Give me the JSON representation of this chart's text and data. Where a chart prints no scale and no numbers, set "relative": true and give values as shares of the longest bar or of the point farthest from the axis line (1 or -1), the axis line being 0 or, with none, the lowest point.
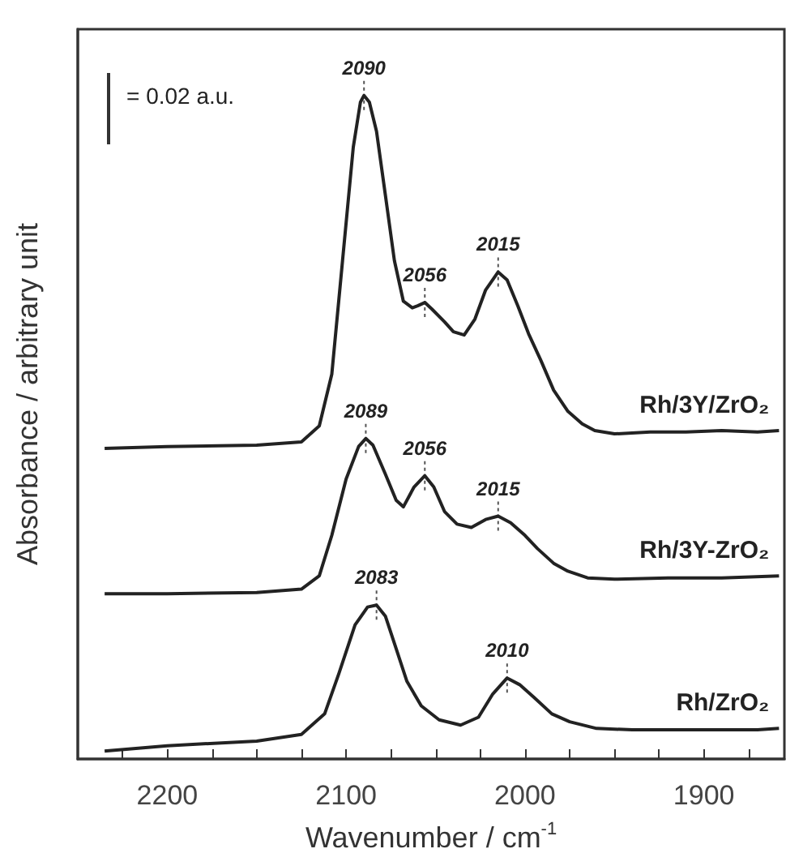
{
  "chart_data": {
    "type": "line",
    "relative": true,
    "xlabel": "Wavenumber / cm$^{-1}$",
    "ylabel": "Absorbance / arbitrary unit",
    "xlim": [
      2250,
      1855
    ],
    "xticks": [
      {
        "value": 2225,
        "label": null
      },
      2200,
      {
        "value": 2175,
        "label": null
      },
      {
        "value": 2150,
        "label": null
      },
      {
        "value": 2125,
        "label": null
      },
      2100,
      {
        "value": 2075,
        "label": null
      },
      {
        "value": 2050,
        "label": null
      },
      {
        "value": 2025,
        "label": null
      },
      2000,
      {
        "value": 1975,
        "label": null
      },
      {
        "value": 1950,
        "label": null
      },
      {
        "value": 1925,
        "label": null
      },
      1900,
      {
        "value": 1875,
        "label": null
      }
    ],
    "tick_labels": "x",
    "series": [
      {
        "name": "Rh/3Y/ZrO₂",
        "color": "#222222",
        "x": [
          2235,
          2200,
          2150,
          2125,
          2115,
          2108,
          2102,
          2096,
          2092,
          2090,
          2087,
          2083,
          2078,
          2073,
          2068,
          2063,
          2060,
          2056,
          2052,
          2045,
          2040,
          2034,
          2028,
          2022,
          2015,
          2010,
          2004,
          1998,
          1991,
          1984,
          1976,
          1968,
          1961,
          1950,
          1930,
          1910,
          1890,
          1870,
          1858
        ],
        "values": [
          0.468,
          0.471,
          0.473,
          0.478,
          0.502,
          0.58,
          0.751,
          0.922,
          0.99,
          1.0,
          0.99,
          0.946,
          0.849,
          0.751,
          0.69,
          0.68,
          0.683,
          0.688,
          0.678,
          0.659,
          0.644,
          0.639,
          0.663,
          0.707,
          0.734,
          0.722,
          0.683,
          0.641,
          0.6,
          0.556,
          0.524,
          0.505,
          0.495,
          0.49,
          0.493,
          0.493,
          0.495,
          0.493,
          0.495
        ]
      },
      {
        "name": "Rh/3Y-ZrO₂",
        "color": "#222222",
        "x": [
          2235,
          2200,
          2150,
          2125,
          2115,
          2108,
          2100,
          2093,
          2089,
          2085,
          2078,
          2072,
          2068,
          2062,
          2056,
          2051,
          2045,
          2038,
          2030,
          2022,
          2015,
          2008,
          2000,
          1993,
          1984,
          1976,
          1965,
          1950,
          1920,
          1890,
          1858
        ],
        "values": [
          0.249,
          0.249,
          0.251,
          0.256,
          0.276,
          0.337,
          0.422,
          0.471,
          0.483,
          0.473,
          0.429,
          0.39,
          0.38,
          0.41,
          0.427,
          0.41,
          0.373,
          0.354,
          0.349,
          0.361,
          0.366,
          0.356,
          0.337,
          0.317,
          0.295,
          0.283,
          0.273,
          0.271,
          0.273,
          0.273,
          0.276
        ]
      },
      {
        "name": "Rh/ZrO₂",
        "color": "#222222",
        "x": [
          2235,
          2200,
          2150,
          2125,
          2112,
          2104,
          2095,
          2088,
          2083,
          2078,
          2072,
          2066,
          2058,
          2048,
          2036,
          2026,
          2018,
          2010,
          2003,
          1995,
          1985,
          1975,
          1960,
          1940,
          1900,
          1870,
          1858
        ],
        "values": [
          0.012,
          0.02,
          0.027,
          0.037,
          0.068,
          0.129,
          0.202,
          0.229,
          0.232,
          0.215,
          0.166,
          0.117,
          0.08,
          0.059,
          0.051,
          0.063,
          0.098,
          0.122,
          0.112,
          0.093,
          0.068,
          0.056,
          0.046,
          0.044,
          0.044,
          0.044,
          0.046
        ]
      }
    ],
    "annotations": [
      "= 0.02 a.u.",
      {
        "text": "2090",
        "x": 2090,
        "y": 1.0
      },
      {
        "text": "2056",
        "x": 2056,
        "y": 0.688
      },
      {
        "text": "2015",
        "x": 2015,
        "y": 0.734
      },
      {
        "text": "2089",
        "x": 2089,
        "y": 0.483
      },
      {
        "text": "2056",
        "x": 2056,
        "y": 0.427
      },
      {
        "text": "2015",
        "x": 2015,
        "y": 0.366
      },
      {
        "text": "2083",
        "x": 2083,
        "y": 0.232
      },
      {
        "text": "2010",
        "x": 2010,
        "y": 0.122
      }
    ]
  }
}
